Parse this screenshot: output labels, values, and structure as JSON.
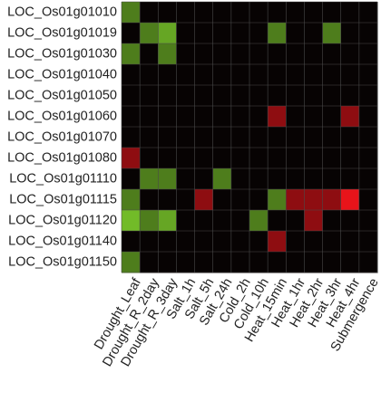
{
  "chart_data": {
    "type": "heatmap",
    "title": "",
    "xlabel": "",
    "ylabel": "",
    "rows": [
      "LOC_Os01g01010",
      "LOC_Os01g01019",
      "LOC_Os01g01030",
      "LOC_Os01g01040",
      "LOC_Os01g01050",
      "LOC_Os01g01060",
      "LOC_Os01g01070",
      "LOC_Os01g01080",
      "LOC_Os01g01110",
      "LOC_Os01g01115",
      "LOC_Os01g01120",
      "LOC_Os01g01140",
      "LOC_Os01g01150"
    ],
    "columns": [
      "Drought_Leaf",
      "Drought_R_2day",
      "Drought_R_3day",
      "Salt_1h",
      "Salt_5h",
      "Salt_24h",
      "Cold_2h",
      "Cold_10h",
      "Heat_15min",
      "Heat_1hr",
      "Heat_2hr",
      "Heat_3hr",
      "Heat_4hr",
      "Submergence"
    ],
    "values": [
      [
        0.6,
        0,
        0,
        0,
        0,
        0,
        0,
        0,
        0,
        0,
        0,
        0,
        0,
        0
      ],
      [
        0,
        0.6,
        0.8,
        0,
        0,
        0,
        0,
        0,
        0.6,
        0,
        0,
        0.6,
        0,
        0
      ],
      [
        0.6,
        0,
        0.6,
        0,
        0,
        0,
        0,
        0,
        0,
        0,
        0,
        0,
        0,
        0
      ],
      [
        0,
        0,
        0,
        0,
        0,
        0,
        0,
        0,
        0,
        0,
        0,
        0,
        0,
        0
      ],
      [
        0,
        0,
        0,
        0,
        0,
        0,
        0,
        0,
        0,
        0,
        0,
        0,
        0,
        0
      ],
      [
        0,
        0,
        0,
        0,
        0,
        0,
        0,
        0,
        -0.6,
        0,
        0,
        0,
        -0.6,
        0
      ],
      [
        0,
        0,
        0,
        0,
        0,
        0,
        0,
        0,
        0,
        0,
        0,
        0,
        0,
        0
      ],
      [
        -0.6,
        0,
        0,
        0,
        0,
        0,
        0,
        0,
        0,
        0,
        0,
        0,
        0,
        0
      ],
      [
        0,
        0.6,
        0.6,
        0,
        0,
        0.6,
        0,
        0,
        0,
        0,
        0,
        0,
        0,
        0
      ],
      [
        0.6,
        0,
        0,
        0,
        -0.6,
        0,
        0,
        0,
        0.6,
        -0.6,
        -0.6,
        -0.6,
        -1,
        0
      ],
      [
        0.9,
        0.6,
        0.8,
        0,
        0,
        0,
        0,
        0.6,
        0,
        0,
        -0.6,
        0,
        0,
        0
      ],
      [
        0,
        0,
        0,
        0,
        0,
        0,
        0,
        0,
        -0.6,
        0,
        0,
        0,
        0,
        0
      ],
      [
        0.6,
        0,
        0,
        0,
        0,
        0,
        0,
        0,
        0,
        0,
        0,
        0,
        0,
        0
      ]
    ],
    "value_range": [
      -1,
      1
    ],
    "colormap": {
      "negative": "#e8141a",
      "neutral": "#070303",
      "positive": "#7ecf2c",
      "mid_green": "#1c8a3a",
      "mid_red": "#8a1a1e"
    },
    "grid": true,
    "grid_color": "#4a4a4a",
    "legend": "none"
  }
}
